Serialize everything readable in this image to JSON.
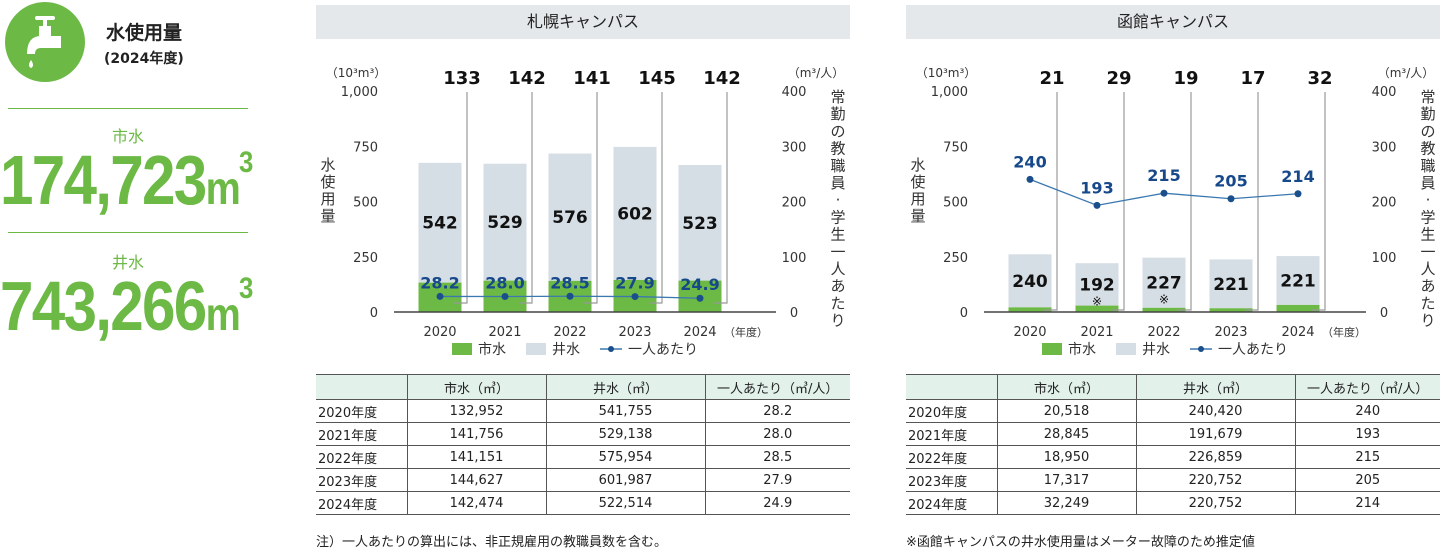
{
  "summary": {
    "title": "水使用量",
    "subtitle": "(2024年度)",
    "city_label": "市水",
    "city_value": "174,723",
    "well_label": "井水",
    "well_value": "743,266",
    "unit": "m",
    "unit_sup": "3",
    "icon": "faucet-icon"
  },
  "colors": {
    "green": "#6cb945",
    "well": "#d5dee5",
    "line": "#1a4f8c",
    "label": "#16488a"
  },
  "panels": [
    {
      "title": "札幌キャンパス",
      "note": "注）一人あたりの算出には、非正規雇用の教職員数を含む。",
      "table": {
        "headers": [
          "",
          "市水（㎥）",
          "井水（㎥）",
          "一人あたり（㎥/人）"
        ],
        "rows": [
          [
            "2020年度",
            "132,952",
            "541,755",
            "28.2"
          ],
          [
            "2021年度",
            "141,756",
            "529,138",
            "28.0"
          ],
          [
            "2022年度",
            "141,151",
            "575,954",
            "28.5"
          ],
          [
            "2023年度",
            "144,627",
            "601,987",
            "27.9"
          ],
          [
            "2024年度",
            "142,474",
            "522,514",
            "24.9"
          ]
        ]
      }
    },
    {
      "title": "函館キャンパス",
      "note": "※函館キャンパスの井水使用量はメーター故障のため推定値",
      "table": {
        "headers": [
          "",
          "市水（㎥）",
          "井水（㎥）",
          "一人あたり（㎥/人）"
        ],
        "rows": [
          [
            "2020年度",
            "20,518",
            "240,420",
            "240"
          ],
          [
            "2021年度",
            "28,845",
            "191,679",
            "193"
          ],
          [
            "2022年度",
            "18,950",
            "226,859",
            "215"
          ],
          [
            "2023年度",
            "17,317",
            "220,752",
            "205"
          ],
          [
            "2024年度",
            "32,249",
            "220,752",
            "214"
          ]
        ]
      }
    }
  ],
  "chart_data": [
    {
      "type": "bar",
      "title": "札幌キャンパス",
      "categories": [
        "2020",
        "2021",
        "2022",
        "2023",
        "2024"
      ],
      "x_suffix": "（年度）",
      "ylabel": "水使用量",
      "yunit": "（10³m³）",
      "ylim": [
        0,
        1000
      ],
      "yticks": [
        "0",
        "250",
        "500",
        "750",
        "1,000"
      ],
      "y2label": "常勤の教職員・学生一人あたり",
      "y2unit": "（m³/人）",
      "y2lim": [
        0,
        400
      ],
      "y2ticks": [
        "0",
        "100",
        "200",
        "300",
        "400"
      ],
      "series": [
        {
          "name": "市水",
          "type": "bar",
          "values": [
            133,
            142,
            141,
            145,
            142
          ]
        },
        {
          "name": "井水",
          "type": "bar",
          "values": [
            542,
            529,
            576,
            602,
            523
          ]
        },
        {
          "name": "一人あたり",
          "type": "line",
          "axis": "y2",
          "values": [
            28.2,
            28.0,
            28.5,
            27.9,
            24.9
          ],
          "labels": [
            "28.2",
            "28.0",
            "28.5",
            "27.9",
            "24.9"
          ]
        }
      ],
      "well_marks": [
        "",
        "",
        "",
        "",
        ""
      ],
      "legend": [
        "市水",
        "井水",
        "一人あたり"
      ]
    },
    {
      "type": "bar",
      "title": "函館キャンパス",
      "categories": [
        "2020",
        "2021",
        "2022",
        "2023",
        "2024"
      ],
      "x_suffix": "（年度）",
      "ylabel": "水使用量",
      "yunit": "（10³m³）",
      "ylim": [
        0,
        1000
      ],
      "yticks": [
        "0",
        "250",
        "500",
        "750",
        "1,000"
      ],
      "y2label": "常勤の教職員・学生一人あたり",
      "y2unit": "（m³/人）",
      "y2lim": [
        0,
        400
      ],
      "y2ticks": [
        "0",
        "100",
        "200",
        "300",
        "400"
      ],
      "series": [
        {
          "name": "市水",
          "type": "bar",
          "values": [
            21,
            29,
            19,
            17,
            32
          ]
        },
        {
          "name": "井水",
          "type": "bar",
          "values": [
            240,
            192,
            227,
            221,
            221
          ]
        },
        {
          "name": "一人あたり",
          "type": "line",
          "axis": "y2",
          "values": [
            240,
            193,
            215,
            205,
            214
          ],
          "labels": [
            "240",
            "193",
            "215",
            "205",
            "214"
          ]
        }
      ],
      "well_marks": [
        "",
        "※",
        "※",
        "",
        ""
      ],
      "legend": [
        "市水",
        "井水",
        "一人あたり"
      ]
    }
  ]
}
